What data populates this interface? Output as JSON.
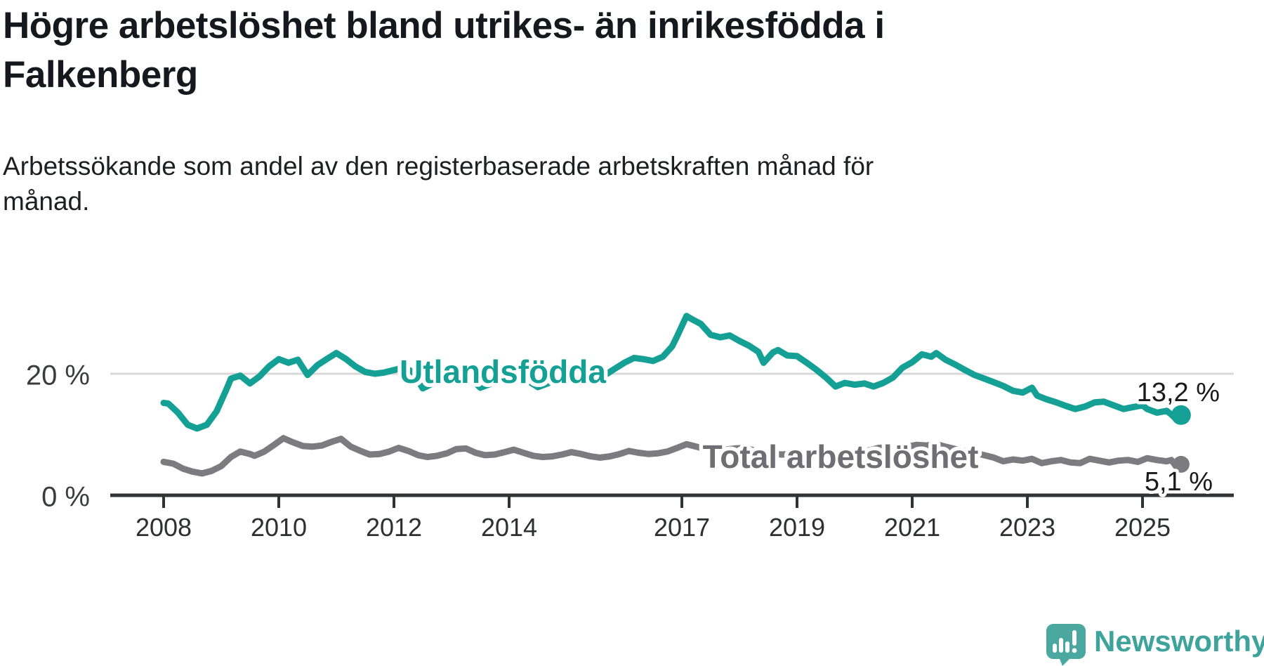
{
  "title": {
    "line1": "Högre arbetslöshet bland utrikes- än inrikesfödda i",
    "line2": "Falkenberg"
  },
  "subtitle": {
    "line1": "Arbetssökande som andel av den registerbaserade arbetskraften månad för",
    "line2": "månad."
  },
  "branding": {
    "logo_text": "Newsworthy",
    "brand_color": "#3da39b",
    "icon_color": "#4aa8a1"
  },
  "chart_data": {
    "type": "line",
    "title": "Högre arbetslöshet bland utrikes- än inrikesfödda i Falkenberg",
    "subtitle": "Arbetssökande som andel av den registerbaserade arbetskraften månad för månad.",
    "unit": "%",
    "grid": "horizontal-20-only",
    "x_axis": {
      "ticks": [
        2008,
        2010,
        2012,
        2014,
        2017,
        2019,
        2021,
        2023,
        2025
      ],
      "range": [
        2007.1,
        2026.6
      ]
    },
    "y_axis": {
      "ticks": [
        {
          "value": 0,
          "label": "0 %"
        },
        {
          "value": 20,
          "label": "20 %"
        }
      ],
      "range": [
        0,
        32
      ]
    },
    "series": [
      {
        "name": "Utlandsfödda",
        "color": "#14a094",
        "label_color": "#14a094",
        "end_label": "13,2 %",
        "end_value": 13.2,
        "points": [
          [
            2008.0,
            15.2
          ],
          [
            2008.08,
            15.1
          ],
          [
            2008.25,
            13.6
          ],
          [
            2008.42,
            11.6
          ],
          [
            2008.58,
            11.0
          ],
          [
            2008.75,
            11.6
          ],
          [
            2008.92,
            13.8
          ],
          [
            2009.08,
            17.2
          ],
          [
            2009.17,
            19.2
          ],
          [
            2009.33,
            19.7
          ],
          [
            2009.5,
            18.4
          ],
          [
            2009.67,
            19.6
          ],
          [
            2009.83,
            21.2
          ],
          [
            2010.0,
            22.4
          ],
          [
            2010.17,
            21.8
          ],
          [
            2010.33,
            22.3
          ],
          [
            2010.5,
            19.8
          ],
          [
            2010.67,
            21.4
          ],
          [
            2010.83,
            22.4
          ],
          [
            2011.0,
            23.4
          ],
          [
            2011.17,
            22.4
          ],
          [
            2011.33,
            21.2
          ],
          [
            2011.5,
            20.3
          ],
          [
            2011.67,
            20.0
          ],
          [
            2011.83,
            20.2
          ],
          [
            2012.0,
            20.6
          ],
          [
            2012.17,
            21.0
          ],
          [
            2012.33,
            20.3
          ],
          [
            2012.5,
            17.6
          ],
          [
            2012.67,
            18.4
          ],
          [
            2012.83,
            19.2
          ],
          [
            2013.0,
            19.7
          ],
          [
            2013.17,
            20.0
          ],
          [
            2013.33,
            19.2
          ],
          [
            2013.5,
            17.7
          ],
          [
            2013.67,
            18.3
          ],
          [
            2013.83,
            19.0
          ],
          [
            2014.0,
            19.4
          ],
          [
            2014.17,
            19.7
          ],
          [
            2014.33,
            18.8
          ],
          [
            2014.5,
            17.8
          ],
          [
            2014.67,
            18.4
          ],
          [
            2014.83,
            19.1
          ],
          [
            2015.0,
            19.6
          ],
          [
            2015.17,
            20.0
          ],
          [
            2015.33,
            19.4
          ],
          [
            2015.5,
            19.0
          ],
          [
            2015.67,
            19.8
          ],
          [
            2015.83,
            20.8
          ],
          [
            2016.0,
            21.8
          ],
          [
            2016.17,
            22.6
          ],
          [
            2016.33,
            22.4
          ],
          [
            2016.5,
            22.1
          ],
          [
            2016.67,
            22.8
          ],
          [
            2016.83,
            24.5
          ],
          [
            2016.92,
            26.2
          ],
          [
            2017.08,
            29.5
          ],
          [
            2017.17,
            29.0
          ],
          [
            2017.33,
            28.2
          ],
          [
            2017.5,
            26.4
          ],
          [
            2017.67,
            26.0
          ],
          [
            2017.83,
            26.3
          ],
          [
            2018.0,
            25.4
          ],
          [
            2018.17,
            24.6
          ],
          [
            2018.33,
            23.6
          ],
          [
            2018.42,
            21.8
          ],
          [
            2018.58,
            23.5
          ],
          [
            2018.67,
            23.9
          ],
          [
            2018.83,
            23.0
          ],
          [
            2019.0,
            22.9
          ],
          [
            2019.17,
            21.8
          ],
          [
            2019.33,
            20.7
          ],
          [
            2019.5,
            19.4
          ],
          [
            2019.67,
            17.9
          ],
          [
            2019.83,
            18.5
          ],
          [
            2020.0,
            18.2
          ],
          [
            2020.17,
            18.4
          ],
          [
            2020.33,
            17.9
          ],
          [
            2020.5,
            18.5
          ],
          [
            2020.67,
            19.4
          ],
          [
            2020.83,
            21.0
          ],
          [
            2021.0,
            21.9
          ],
          [
            2021.17,
            23.2
          ],
          [
            2021.33,
            22.8
          ],
          [
            2021.42,
            23.4
          ],
          [
            2021.58,
            22.3
          ],
          [
            2021.75,
            21.5
          ],
          [
            2021.92,
            20.6
          ],
          [
            2022.08,
            19.8
          ],
          [
            2022.25,
            19.2
          ],
          [
            2022.42,
            18.6
          ],
          [
            2022.58,
            18.0
          ],
          [
            2022.75,
            17.2
          ],
          [
            2022.92,
            16.9
          ],
          [
            2023.08,
            17.7
          ],
          [
            2023.17,
            16.4
          ],
          [
            2023.33,
            15.8
          ],
          [
            2023.5,
            15.3
          ],
          [
            2023.67,
            14.7
          ],
          [
            2023.83,
            14.2
          ],
          [
            2024.0,
            14.6
          ],
          [
            2024.17,
            15.3
          ],
          [
            2024.33,
            15.4
          ],
          [
            2024.5,
            14.8
          ],
          [
            2024.67,
            14.2
          ],
          [
            2024.83,
            14.5
          ],
          [
            2025.0,
            14.8
          ],
          [
            2025.08,
            14.2
          ],
          [
            2025.25,
            13.6
          ],
          [
            2025.42,
            13.9
          ],
          [
            2025.5,
            13.3
          ],
          [
            2025.58,
            12.6
          ],
          [
            2025.67,
            13.2
          ]
        ]
      },
      {
        "name": "Total arbetslöshet",
        "color": "#7b7b80",
        "label_color": "#6e6e73",
        "end_label": "5,1 %",
        "end_value": 5.1,
        "points": [
          [
            2008.0,
            5.5
          ],
          [
            2008.17,
            5.2
          ],
          [
            2008.33,
            4.4
          ],
          [
            2008.5,
            3.9
          ],
          [
            2008.67,
            3.6
          ],
          [
            2008.83,
            4.0
          ],
          [
            2009.0,
            4.8
          ],
          [
            2009.17,
            6.3
          ],
          [
            2009.33,
            7.2
          ],
          [
            2009.5,
            6.8
          ],
          [
            2009.58,
            6.5
          ],
          [
            2009.75,
            7.2
          ],
          [
            2009.92,
            8.3
          ],
          [
            2010.08,
            9.4
          ],
          [
            2010.25,
            8.7
          ],
          [
            2010.42,
            8.1
          ],
          [
            2010.58,
            8.0
          ],
          [
            2010.75,
            8.2
          ],
          [
            2010.92,
            8.8
          ],
          [
            2011.08,
            9.3
          ],
          [
            2011.25,
            8.0
          ],
          [
            2011.42,
            7.3
          ],
          [
            2011.58,
            6.7
          ],
          [
            2011.75,
            6.8
          ],
          [
            2011.92,
            7.2
          ],
          [
            2012.08,
            7.8
          ],
          [
            2012.25,
            7.3
          ],
          [
            2012.42,
            6.6
          ],
          [
            2012.58,
            6.3
          ],
          [
            2012.75,
            6.5
          ],
          [
            2012.92,
            6.9
          ],
          [
            2013.08,
            7.6
          ],
          [
            2013.25,
            7.7
          ],
          [
            2013.42,
            7.0
          ],
          [
            2013.58,
            6.6
          ],
          [
            2013.75,
            6.7
          ],
          [
            2013.92,
            7.1
          ],
          [
            2014.08,
            7.5
          ],
          [
            2014.25,
            7.0
          ],
          [
            2014.42,
            6.5
          ],
          [
            2014.58,
            6.3
          ],
          [
            2014.75,
            6.4
          ],
          [
            2014.92,
            6.7
          ],
          [
            2015.08,
            7.1
          ],
          [
            2015.25,
            6.8
          ],
          [
            2015.42,
            6.4
          ],
          [
            2015.58,
            6.2
          ],
          [
            2015.75,
            6.4
          ],
          [
            2015.92,
            6.8
          ],
          [
            2016.08,
            7.3
          ],
          [
            2016.25,
            7.0
          ],
          [
            2016.42,
            6.8
          ],
          [
            2016.58,
            6.9
          ],
          [
            2016.75,
            7.2
          ],
          [
            2016.92,
            7.8
          ],
          [
            2017.08,
            8.4
          ],
          [
            2017.25,
            8.0
          ],
          [
            2017.42,
            7.6
          ],
          [
            2017.58,
            7.4
          ],
          [
            2017.75,
            7.5
          ],
          [
            2017.92,
            7.7
          ],
          [
            2018.08,
            7.8
          ],
          [
            2018.25,
            7.4
          ],
          [
            2018.42,
            7.0
          ],
          [
            2018.58,
            6.8
          ],
          [
            2018.75,
            6.7
          ],
          [
            2018.92,
            6.9
          ],
          [
            2019.08,
            7.0
          ],
          [
            2019.25,
            6.7
          ],
          [
            2019.42,
            6.4
          ],
          [
            2019.58,
            6.2
          ],
          [
            2019.75,
            6.3
          ],
          [
            2019.92,
            6.5
          ],
          [
            2020.08,
            6.8
          ],
          [
            2020.25,
            7.4
          ],
          [
            2020.42,
            7.8
          ],
          [
            2020.58,
            7.9
          ],
          [
            2020.75,
            7.8
          ],
          [
            2020.92,
            8.0
          ],
          [
            2021.08,
            8.3
          ],
          [
            2021.25,
            8.2
          ],
          [
            2021.42,
            8.4
          ],
          [
            2021.58,
            8.0
          ],
          [
            2021.75,
            7.6
          ],
          [
            2021.92,
            7.3
          ],
          [
            2022.08,
            7.0
          ],
          [
            2022.25,
            6.6
          ],
          [
            2022.42,
            6.2
          ],
          [
            2022.58,
            5.6
          ],
          [
            2022.75,
            5.9
          ],
          [
            2022.92,
            5.7
          ],
          [
            2023.08,
            6.0
          ],
          [
            2023.25,
            5.3
          ],
          [
            2023.42,
            5.6
          ],
          [
            2023.58,
            5.8
          ],
          [
            2023.75,
            5.4
          ],
          [
            2023.92,
            5.3
          ],
          [
            2024.08,
            6.0
          ],
          [
            2024.25,
            5.7
          ],
          [
            2024.42,
            5.4
          ],
          [
            2024.58,
            5.7
          ],
          [
            2024.75,
            5.8
          ],
          [
            2024.92,
            5.5
          ],
          [
            2025.08,
            6.1
          ],
          [
            2025.25,
            5.8
          ],
          [
            2025.42,
            5.6
          ],
          [
            2025.5,
            5.8
          ],
          [
            2025.58,
            4.8
          ],
          [
            2025.67,
            5.1
          ]
        ]
      }
    ],
    "legend_position": "inline-labels"
  }
}
